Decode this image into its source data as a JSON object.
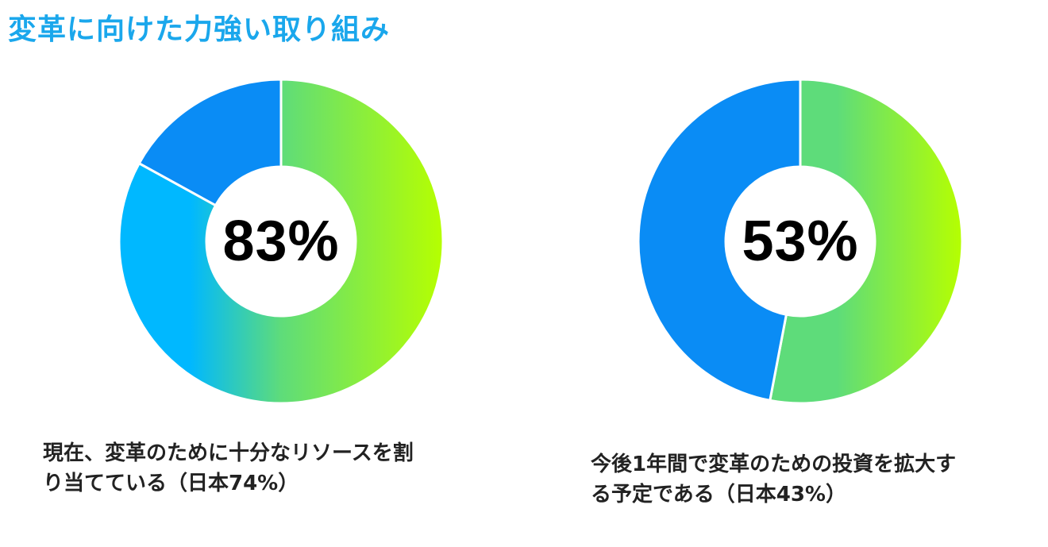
{
  "title": "変革に向けた力強い取り組み",
  "chart_data": [
    {
      "type": "pie",
      "donut": true,
      "center_label": "83%",
      "segments": [
        {
          "value": 83,
          "color": "gradient-green"
        },
        {
          "value": 17,
          "color": "#0a8cf5"
        }
      ],
      "caption": "現在、変革のために十分なリソースを割\nり当てている（日本74%）"
    },
    {
      "type": "pie",
      "donut": true,
      "center_label": "53%",
      "segments": [
        {
          "value": 53,
          "color": "gradient-green"
        },
        {
          "value": 47,
          "color": "#0a8cf5"
        }
      ],
      "caption": "今後1年間で変革のための投資を拡大す\nる予定である（日本43%）"
    }
  ],
  "colors": {
    "title": "#1aa7ec",
    "blue_segment": "#0a8cf5",
    "gradient_start": "#00b8ff",
    "gradient_mid": "#5edc7a",
    "gradient_end": "#b6ff00"
  }
}
